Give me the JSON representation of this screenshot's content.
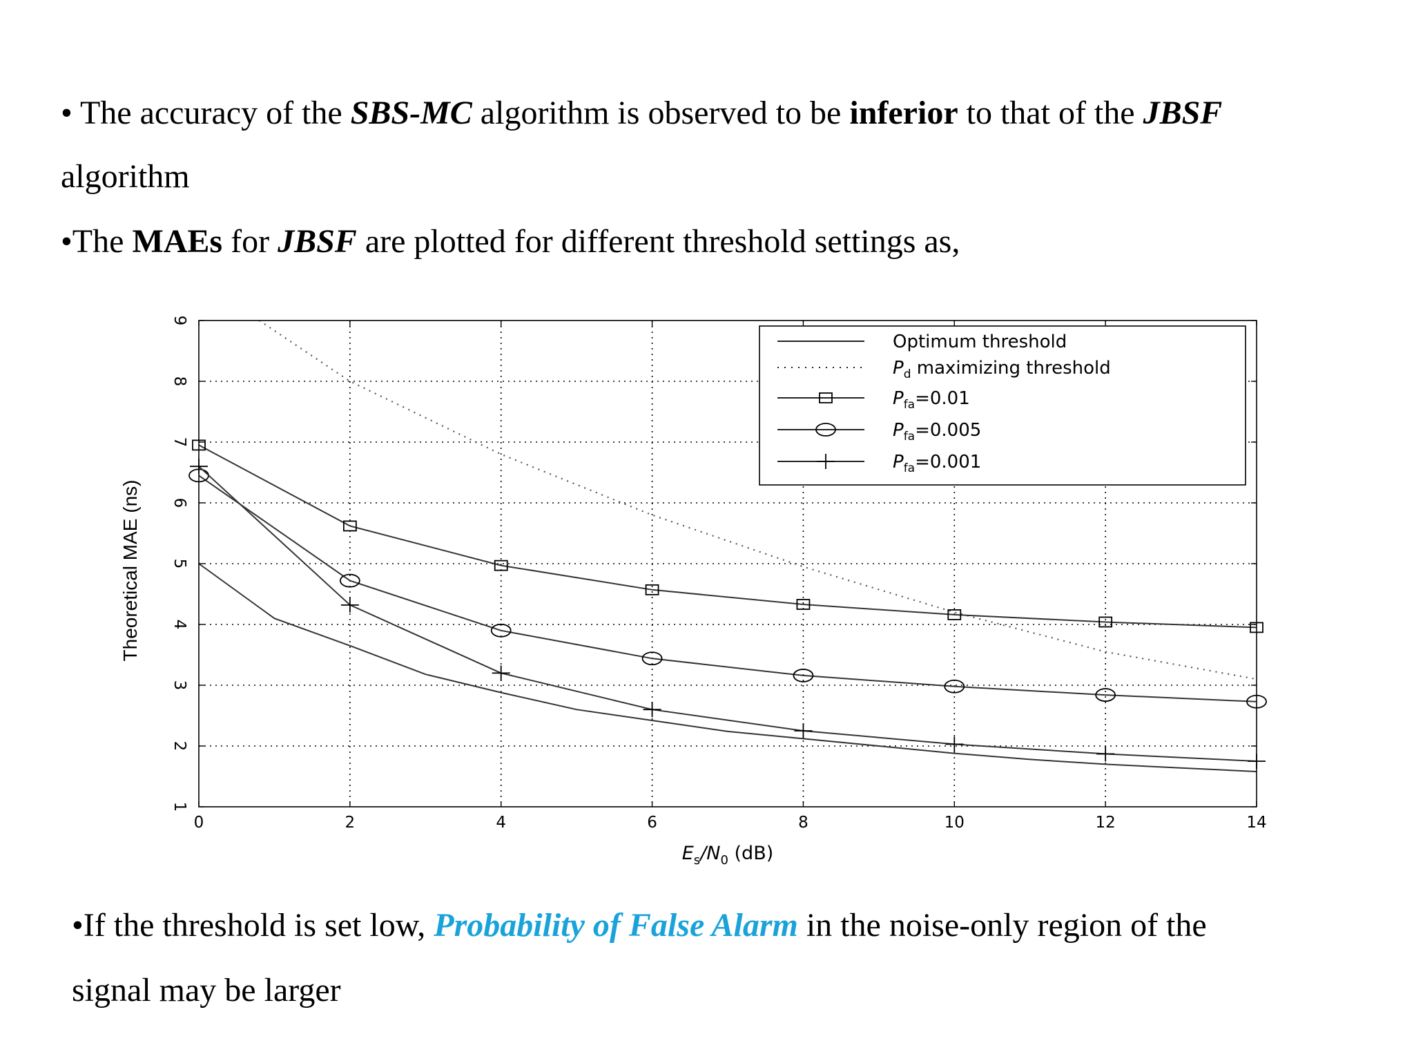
{
  "slide": {
    "line1": {
      "a": "• The accuracy of the ",
      "b": "SBS-MC",
      "c": " algorithm is observed to be ",
      "d": "inferior",
      "e": " to that of the ",
      "f": "JBSF"
    },
    "line2": "algorithm",
    "line3": {
      "a": "•The ",
      "b": "MAEs",
      "c": " for ",
      "d": "JBSF",
      "e": " are plotted for different threshold settings as,"
    },
    "line4": {
      "a": "•If the threshold is set low, ",
      "b": "Probability of False Alarm",
      "c": " in the noise-only region of the"
    },
    "line5": "signal may be larger",
    "highlight_color": "#1aa3d9"
  },
  "chart_data": {
    "type": "line",
    "xlabel": {
      "main": "E",
      "sub1": "s",
      "slash": "/N",
      "sub2": "0",
      "unit": " (dB)"
    },
    "ylabel": "Theoretical MAE (ns)",
    "xlim": [
      0,
      14
    ],
    "ylim": [
      1,
      9
    ],
    "xticks": [
      0,
      2,
      4,
      6,
      8,
      10,
      12,
      14
    ],
    "yticks": [
      1,
      2,
      3,
      4,
      5,
      6,
      7,
      8,
      9
    ],
    "grid": true,
    "legend_position": "top-right",
    "series": [
      {
        "name": "Optimum threshold",
        "style": "solid",
        "marker": "none",
        "x": [
          0,
          1,
          2,
          3,
          4,
          5,
          6,
          7,
          8,
          9,
          10,
          11,
          12,
          13,
          14
        ],
        "y": [
          5.0,
          4.1,
          3.65,
          3.18,
          2.88,
          2.6,
          2.42,
          2.24,
          2.12,
          2.0,
          1.88,
          1.78,
          1.7,
          1.64,
          1.58
        ]
      },
      {
        "name": "maximizing threshold",
        "name_prefix": "P",
        "name_sub": "d",
        "style": "dotted",
        "marker": "none",
        "x": [
          0.8,
          2,
          4,
          6,
          8,
          10,
          12,
          14
        ],
        "y": [
          9.0,
          8.0,
          6.8,
          5.8,
          4.95,
          4.2,
          3.55,
          3.1
        ]
      },
      {
        "name": "=0.01",
        "name_prefix": "P",
        "name_sub": "fa",
        "style": "solid",
        "marker": "square",
        "x": [
          0,
          2,
          4,
          6,
          8,
          10,
          12,
          14
        ],
        "y": [
          6.95,
          5.62,
          4.97,
          4.57,
          4.33,
          4.16,
          4.04,
          3.95
        ]
      },
      {
        "name": "=0.005",
        "name_prefix": "P",
        "name_sub": "fa",
        "style": "solid",
        "marker": "circle",
        "x": [
          0,
          2,
          4,
          6,
          8,
          10,
          12,
          14
        ],
        "y": [
          6.45,
          4.72,
          3.9,
          3.44,
          3.16,
          2.98,
          2.84,
          2.73
        ]
      },
      {
        "name": "=0.001",
        "name_prefix": "P",
        "name_sub": "fa",
        "style": "solid",
        "marker": "plus",
        "x": [
          0,
          2,
          4,
          6,
          8,
          10,
          12,
          14
        ],
        "y": [
          6.6,
          4.32,
          3.2,
          2.6,
          2.25,
          2.03,
          1.87,
          1.75
        ]
      }
    ]
  }
}
